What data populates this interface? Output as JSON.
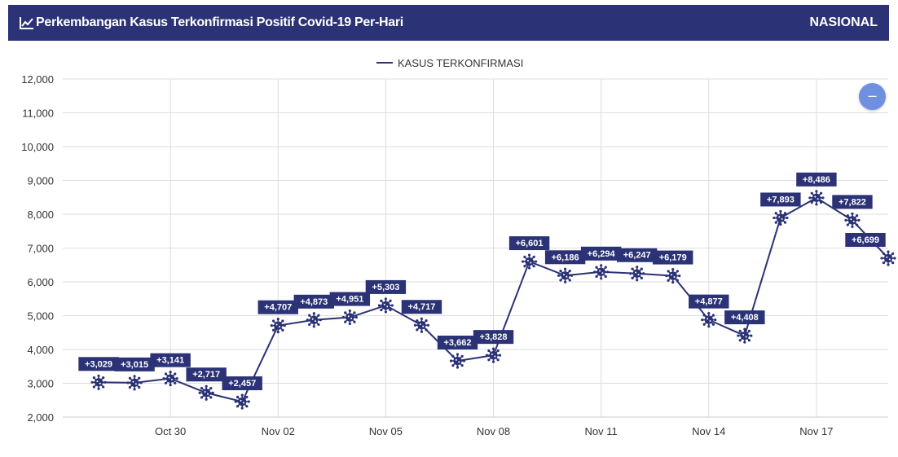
{
  "header": {
    "title": "Perkembangan Kasus Terkonfirmasi Positif Covid-19 Per-Hari",
    "region": "NASIONAL",
    "logo_icon": "line-chart-icon"
  },
  "zoom_button": {
    "icon": "minus-icon",
    "label": "–"
  },
  "colors": {
    "header_bg": "#2b3275",
    "series": "#2b3275",
    "grid": "#dddddd",
    "zoom_button": "#6f8fe0"
  },
  "chart_data": {
    "type": "line",
    "series": [
      {
        "name": "KASUS TERKONFIRMASI",
        "marker_icon": "virus-icon",
        "x": [
          "2020-10-28",
          "2020-10-29",
          "2020-10-30",
          "2020-10-31",
          "2020-11-01",
          "2020-11-02",
          "2020-11-03",
          "2020-11-04",
          "2020-11-05",
          "2020-11-06",
          "2020-11-07",
          "2020-11-08",
          "2020-11-09",
          "2020-11-10",
          "2020-11-11",
          "2020-11-12",
          "2020-11-13",
          "2020-11-14",
          "2020-11-15",
          "2020-11-16",
          "2020-11-17",
          "2020-11-18"
        ],
        "values": [
          3029,
          3015,
          3141,
          2717,
          2457,
          4707,
          4873,
          4951,
          5303,
          4717,
          3662,
          3828,
          6601,
          6186,
          6294,
          6247,
          6179,
          4877,
          4408,
          7893,
          8486,
          7822
        ],
        "data_labels": [
          "+3,029",
          "+3,015",
          "+3,141",
          "+2,717",
          "+2,457",
          "+4,707",
          "+4,873",
          "+4,951",
          "+5,303",
          "+4,717",
          "+3,662",
          "+3,828",
          "+6,601",
          "+6,186",
          "+6,294",
          "+6,247",
          "+6,179",
          "+4,877",
          "+4,408",
          "+7,893",
          "+8,486",
          "+7,822"
        ]
      }
    ],
    "extra_point": {
      "x": "2020-11-19",
      "value": 6699,
      "label": "+6,699"
    },
    "x_ticks": [
      {
        "date": "2020-10-30",
        "label": "Oct 30"
      },
      {
        "date": "2020-11-02",
        "label": "Nov 02"
      },
      {
        "date": "2020-11-05",
        "label": "Nov 05"
      },
      {
        "date": "2020-11-08",
        "label": "Nov 08"
      },
      {
        "date": "2020-11-11",
        "label": "Nov 11"
      },
      {
        "date": "2020-11-14",
        "label": "Nov 14"
      },
      {
        "date": "2020-11-17",
        "label": "Nov 17"
      }
    ],
    "x_range": [
      "2020-10-27",
      "2020-11-19"
    ],
    "y_ticks": [
      2000,
      3000,
      4000,
      5000,
      6000,
      7000,
      8000,
      9000,
      10000,
      11000,
      12000
    ],
    "y_tick_labels": [
      "2,000",
      "3,000",
      "4,000",
      "5,000",
      "6,000",
      "7,000",
      "8,000",
      "9,000",
      "10,000",
      "11,000",
      "12,000"
    ],
    "ylim": [
      2000,
      12000
    ],
    "legend": "top-center",
    "grid": true
  }
}
